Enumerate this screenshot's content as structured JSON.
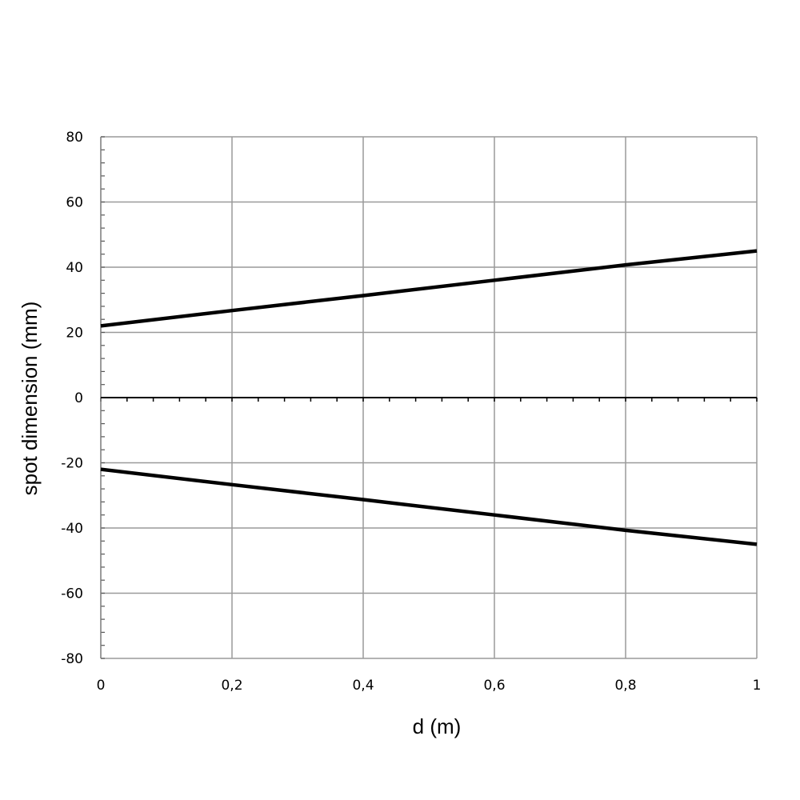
{
  "chart_data": {
    "type": "line",
    "xlabel": "d (m)",
    "ylabel": "spot dimension (mm)",
    "xlim": [
      0,
      1
    ],
    "ylim": [
      -80,
      80
    ],
    "x_ticks": [
      0,
      0.2,
      0.4,
      0.6,
      0.8,
      1
    ],
    "x_tick_labels": [
      "0",
      "0,2",
      "0,4",
      "0,6",
      "0,8",
      "1"
    ],
    "y_ticks": [
      80,
      60,
      40,
      20,
      0,
      -20,
      -40,
      -60,
      -80
    ],
    "y_tick_labels": [
      "80",
      "60",
      "40",
      "20",
      "0",
      "-20",
      "-40",
      "-60",
      "-80"
    ],
    "grid": true,
    "line_color": "#000000",
    "grid_color": "#9a9a9a",
    "series": [
      {
        "x": [
          0,
          0.2,
          0.4,
          0.6,
          0.8,
          1
        ],
        "values": [
          22,
          26.7,
          31.3,
          36,
          40.7,
          45
        ]
      },
      {
        "x": [
          0,
          0.2,
          0.4,
          0.6,
          0.8,
          1
        ],
        "values": [
          -22,
          -26.7,
          -31.3,
          -36,
          -40.7,
          -45
        ]
      }
    ]
  }
}
